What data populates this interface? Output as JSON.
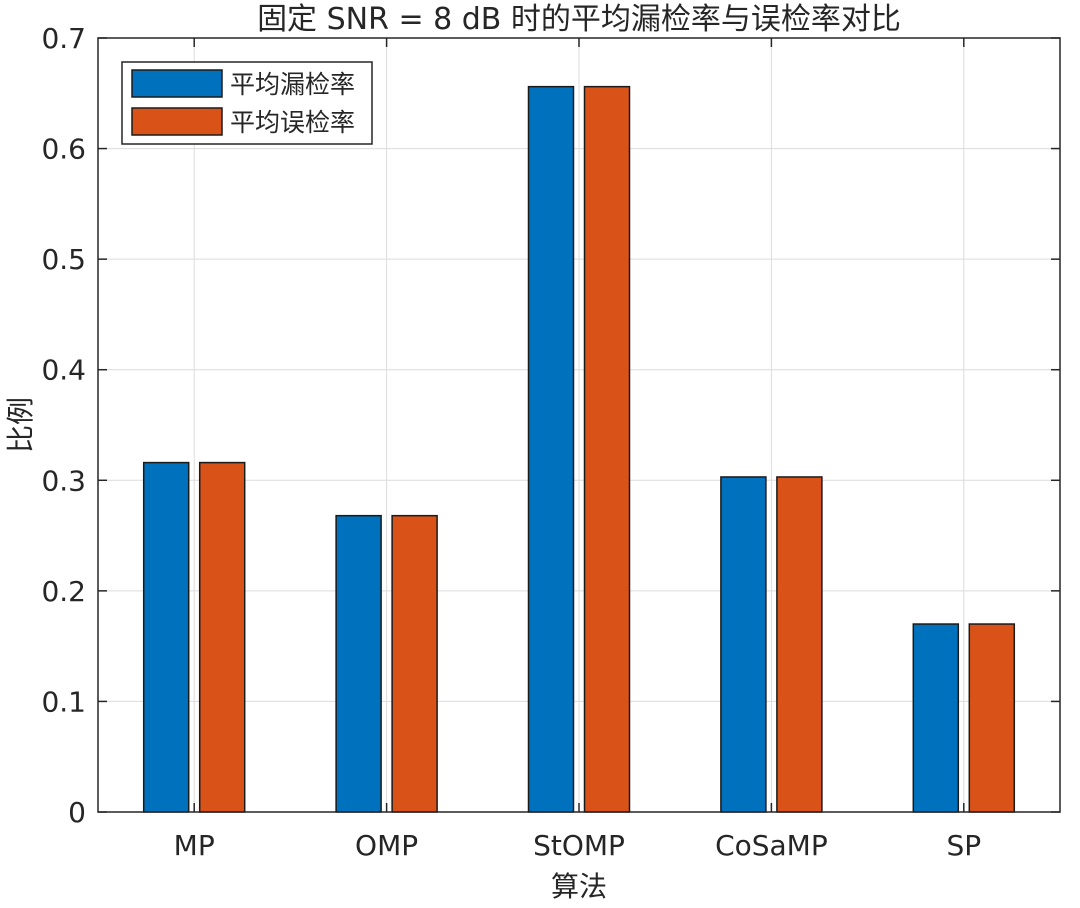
{
  "chart_data": {
    "type": "bar",
    "title": "固定 SNR = 8 dB 时的平均漏检率与误检率对比",
    "xlabel": "算法",
    "ylabel": "比例",
    "categories": [
      "MP",
      "OMP",
      "StOMP",
      "CoSaMP",
      "SP"
    ],
    "series": [
      {
        "name": "平均漏检率",
        "color": "#0072BD",
        "values": [
          0.316,
          0.268,
          0.656,
          0.303,
          0.17
        ]
      },
      {
        "name": "平均误检率",
        "color": "#D95319",
        "values": [
          0.316,
          0.268,
          0.656,
          0.303,
          0.17
        ]
      }
    ],
    "ylim": [
      0,
      0.7
    ],
    "yticks": [
      "0",
      "0.1",
      "0.2",
      "0.3",
      "0.4",
      "0.5",
      "0.6",
      "0.7"
    ],
    "grid": true,
    "legend": "top-left"
  }
}
